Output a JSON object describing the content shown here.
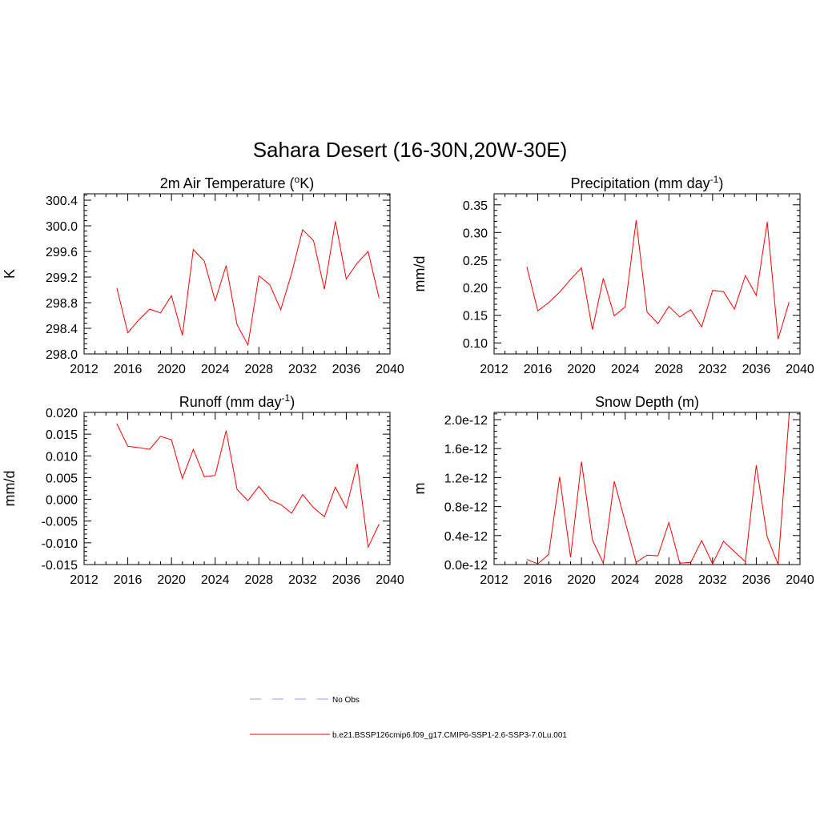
{
  "figure_title": "Sahara Desert (16-30N,20W-30E)",
  "colors": {
    "series": "#ff0000",
    "obs": "#9999dd",
    "axis": "#000000"
  },
  "legend": {
    "obs_label": "No Obs",
    "model_label": "b.e21.BSSP126cmip6.f09_g17.CMIP6-SSP1-2.6-SSP3-7.0Lu.001"
  },
  "chart_data": [
    {
      "type": "line",
      "title": "2m Air Temperature (°K)",
      "title_main": "2m Air Temperature (",
      "title_sup": "o",
      "title_tail": "K)",
      "xlabel": "",
      "ylabel": "K",
      "xlim": [
        2012,
        2040
      ],
      "ylim": [
        298.0,
        300.5
      ],
      "xticks": [
        2012,
        2016,
        2020,
        2024,
        2028,
        2032,
        2036,
        2040
      ],
      "xtick_labels": [
        "2012",
        "2016",
        "2020",
        "2024",
        "2028",
        "2032",
        "2036",
        "2040"
      ],
      "yticks": [
        298.0,
        298.4,
        298.8,
        299.2,
        299.6,
        300.0,
        300.4
      ],
      "ytick_labels": [
        "298.0",
        "298.4",
        "298.8",
        "299.2",
        "299.6",
        "300.0",
        "300.4"
      ],
      "series": [
        {
          "x": [
            2015,
            2016,
            2017,
            2018,
            2019,
            2020,
            2021,
            2022,
            2023,
            2024,
            2025,
            2026,
            2027,
            2028,
            2029,
            2030,
            2031,
            2032,
            2033,
            2034,
            2035,
            2036,
            2037,
            2038,
            2039
          ],
          "values": [
            299.03,
            298.33,
            298.53,
            298.7,
            298.64,
            298.91,
            298.29,
            299.63,
            299.45,
            298.83,
            299.38,
            298.46,
            298.14,
            299.22,
            299.08,
            298.69,
            299.26,
            299.94,
            299.77,
            299.01,
            300.07,
            299.17,
            299.42,
            299.6,
            298.87
          ]
        }
      ]
    },
    {
      "type": "line",
      "title": "Precipitation (mm day-1)",
      "title_main": "Precipitation (mm day",
      "title_sup": "-1",
      "title_tail": ")",
      "xlabel": "",
      "ylabel": "mm/d",
      "xlim": [
        2012,
        2040
      ],
      "ylim": [
        0.08,
        0.37
      ],
      "xticks": [
        2012,
        2016,
        2020,
        2024,
        2028,
        2032,
        2036,
        2040
      ],
      "xtick_labels": [
        "2012",
        "2016",
        "2020",
        "2024",
        "2028",
        "2032",
        "2036",
        "2040"
      ],
      "yticks": [
        0.1,
        0.15,
        0.2,
        0.25,
        0.3,
        0.35
      ],
      "ytick_labels": [
        "0.10",
        "0.15",
        "0.20",
        "0.25",
        "0.30",
        "0.35"
      ],
      "series": [
        {
          "x": [
            2015,
            2016,
            2017,
            2018,
            2019,
            2020,
            2021,
            2022,
            2023,
            2024,
            2025,
            2026,
            2027,
            2028,
            2029,
            2030,
            2031,
            2032,
            2033,
            2034,
            2035,
            2036,
            2037,
            2038,
            2039
          ],
          "values": [
            0.238,
            0.158,
            0.173,
            0.192,
            0.215,
            0.236,
            0.124,
            0.217,
            0.149,
            0.165,
            0.322,
            0.156,
            0.135,
            0.166,
            0.147,
            0.16,
            0.129,
            0.195,
            0.193,
            0.161,
            0.222,
            0.186,
            0.319,
            0.107,
            0.174
          ]
        }
      ]
    },
    {
      "type": "line",
      "title": "Runoff (mm day-1)",
      "title_main": "Runoff (mm day",
      "title_sup": "-1",
      "title_tail": ")",
      "xlabel": "",
      "ylabel": "mm/d",
      "xlim": [
        2012,
        2040
      ],
      "ylim": [
        -0.015,
        0.02
      ],
      "xticks": [
        2012,
        2016,
        2020,
        2024,
        2028,
        2032,
        2036,
        2040
      ],
      "xtick_labels": [
        "2012",
        "2016",
        "2020",
        "2024",
        "2028",
        "2032",
        "2036",
        "2040"
      ],
      "yticks": [
        -0.015,
        -0.01,
        -0.005,
        0.0,
        0.005,
        0.01,
        0.015,
        0.02
      ],
      "ytick_labels": [
        "-0.015",
        "-0.010",
        "-0.005",
        "0.000",
        "0.005",
        "0.010",
        "0.015",
        "0.020"
      ],
      "series": [
        {
          "x": [
            2015,
            2016,
            2017,
            2018,
            2019,
            2020,
            2021,
            2022,
            2023,
            2024,
            2025,
            2026,
            2027,
            2028,
            2029,
            2030,
            2031,
            2032,
            2033,
            2034,
            2035,
            2036,
            2037,
            2038,
            2039
          ],
          "values": [
            0.0174,
            0.0122,
            0.0119,
            0.0115,
            0.0145,
            0.0137,
            0.0048,
            0.0115,
            0.0052,
            0.0055,
            0.0158,
            0.0023,
            -0.0003,
            0.003,
            -0.0001,
            -0.0012,
            -0.0032,
            0.0011,
            -0.0019,
            -0.004,
            0.0028,
            -0.002,
            0.0082,
            -0.011,
            -0.0057
          ]
        }
      ]
    },
    {
      "type": "line",
      "title": "Snow Depth (m)",
      "title_main": "Snow Depth (m)",
      "title_sup": "",
      "title_tail": "",
      "xlabel": "",
      "ylabel": "m",
      "xlim": [
        2012,
        2040
      ],
      "ylim": [
        0.0,
        2.1e-12
      ],
      "xticks": [
        2012,
        2016,
        2020,
        2024,
        2028,
        2032,
        2036,
        2040
      ],
      "xtick_labels": [
        "2012",
        "2016",
        "2020",
        "2024",
        "2028",
        "2032",
        "2036",
        "2040"
      ],
      "yticks": [
        0.0,
        4e-13,
        8e-13,
        1.2e-12,
        1.6e-12,
        2e-12
      ],
      "ytick_labels": [
        "0.0e-12",
        "0.4e-12",
        "0.8e-12",
        "1.2e-12",
        "1.6e-12",
        "2.0e-12"
      ],
      "series": [
        {
          "x": [
            2015,
            2016,
            2017,
            2018,
            2019,
            2020,
            2021,
            2022,
            2023,
            2024,
            2025,
            2026,
            2027,
            2028,
            2029,
            2030,
            2031,
            2032,
            2033,
            2034,
            2035,
            2036,
            2037,
            2038,
            2039
          ],
          "values": [
            7e-14,
            1e-14,
            1.4e-13,
            1.21e-12,
            1e-13,
            1.42e-12,
            3.4e-13,
            2e-14,
            1.15e-12,
            5.9e-13,
            3e-14,
            1.3e-13,
            1.2e-13,
            5.8e-13,
            2e-14,
            3e-14,
            3.3e-13,
            1e-14,
            3.2e-13,
            1.8e-13,
            4e-14,
            1.37e-12,
            3.8e-13,
            0.0,
            2.06e-12
          ]
        }
      ]
    }
  ]
}
